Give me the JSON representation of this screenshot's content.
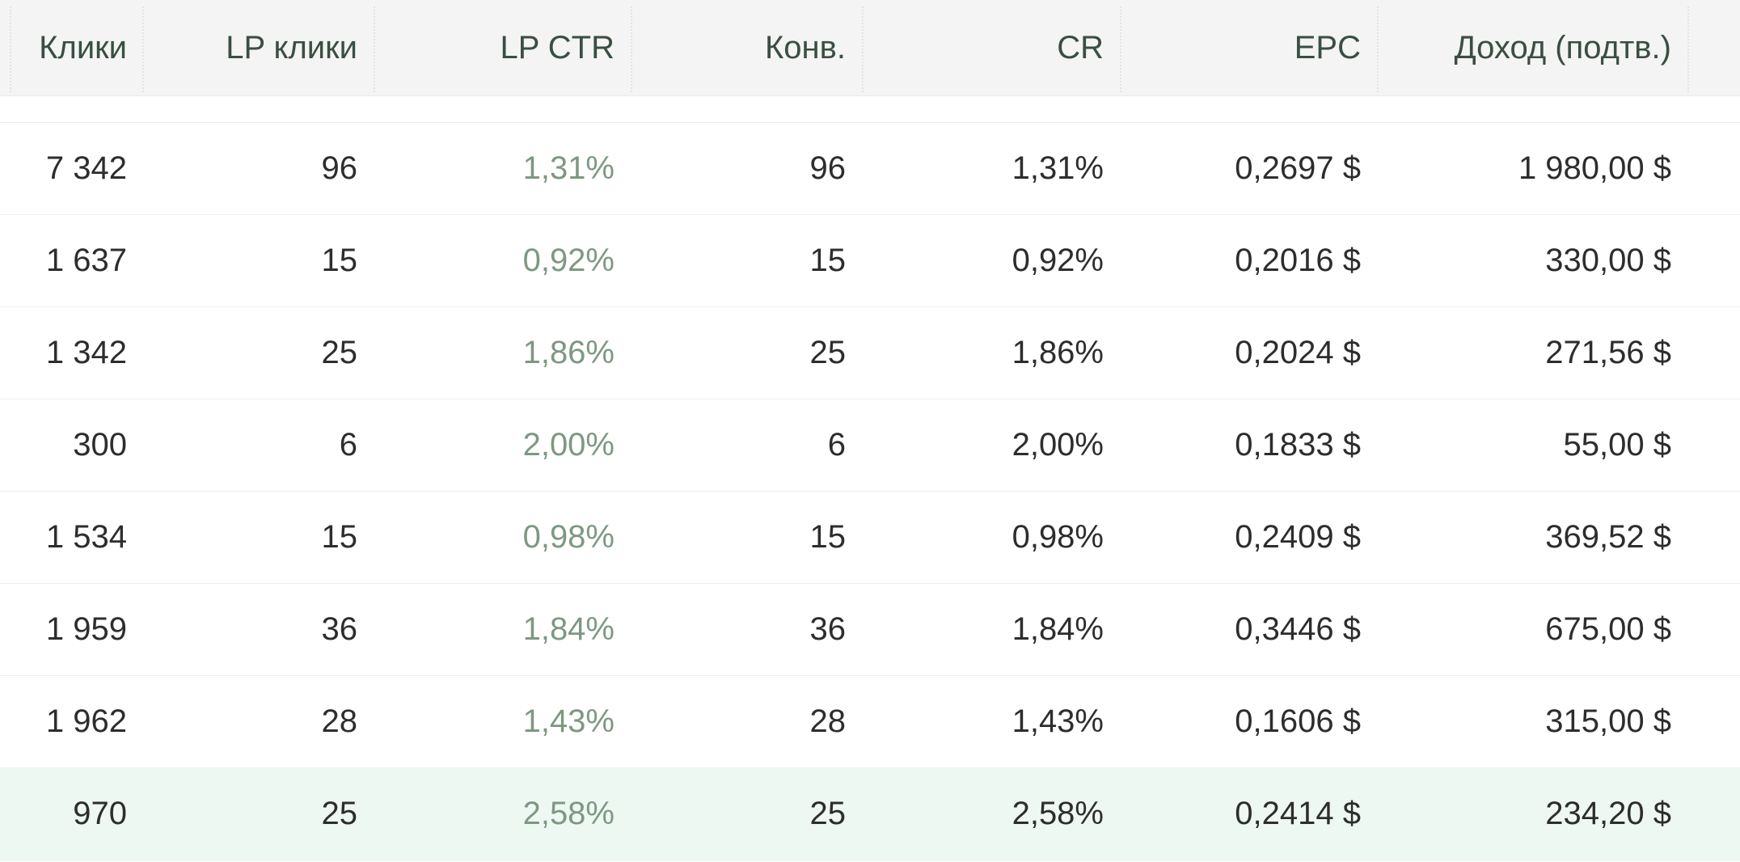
{
  "table": {
    "headers": {
      "clicks": "Клики",
      "lp_clicks": "LP клики",
      "lp_ctr": "LP CTR",
      "conversions": "Конв.",
      "cr": "CR",
      "epc": "EPC",
      "revenue": "Доход (подтв.)"
    },
    "rows": [
      {
        "clicks": "7 342",
        "lp_clicks": "96",
        "lp_ctr": "1,31%",
        "conversions": "96",
        "cr": "1,31%",
        "epc": "0,2697 $",
        "revenue": "1 980,00 $"
      },
      {
        "clicks": "1 637",
        "lp_clicks": "15",
        "lp_ctr": "0,92%",
        "conversions": "15",
        "cr": "0,92%",
        "epc": "0,2016 $",
        "revenue": "330,00 $"
      },
      {
        "clicks": "1 342",
        "lp_clicks": "25",
        "lp_ctr": "1,86%",
        "conversions": "25",
        "cr": "1,86%",
        "epc": "0,2024 $",
        "revenue": "271,56 $"
      },
      {
        "clicks": "300",
        "lp_clicks": "6",
        "lp_ctr": "2,00%",
        "conversions": "6",
        "cr": "2,00%",
        "epc": "0,1833 $",
        "revenue": "55,00 $"
      },
      {
        "clicks": "1 534",
        "lp_clicks": "15",
        "lp_ctr": "0,98%",
        "conversions": "15",
        "cr": "0,98%",
        "epc": "0,2409 $",
        "revenue": "369,52 $"
      },
      {
        "clicks": "1 959",
        "lp_clicks": "36",
        "lp_ctr": "1,84%",
        "conversions": "36",
        "cr": "1,84%",
        "epc": "0,3446 $",
        "revenue": "675,00 $"
      },
      {
        "clicks": "1 962",
        "lp_clicks": "28",
        "lp_ctr": "1,43%",
        "conversions": "28",
        "cr": "1,43%",
        "epc": "0,1606 $",
        "revenue": "315,00 $"
      },
      {
        "clicks": "970",
        "lp_clicks": "25",
        "lp_ctr": "2,58%",
        "conversions": "25",
        "cr": "2,58%",
        "epc": "0,2414 $",
        "revenue": "234,20 $"
      }
    ],
    "highlighted_row": 7,
    "colors": {
      "header_bg": "#f4f4f4",
      "header_text": "#3a4e41",
      "muted_value": "#7e9882",
      "highlight_bg": "#eef8f3"
    }
  }
}
